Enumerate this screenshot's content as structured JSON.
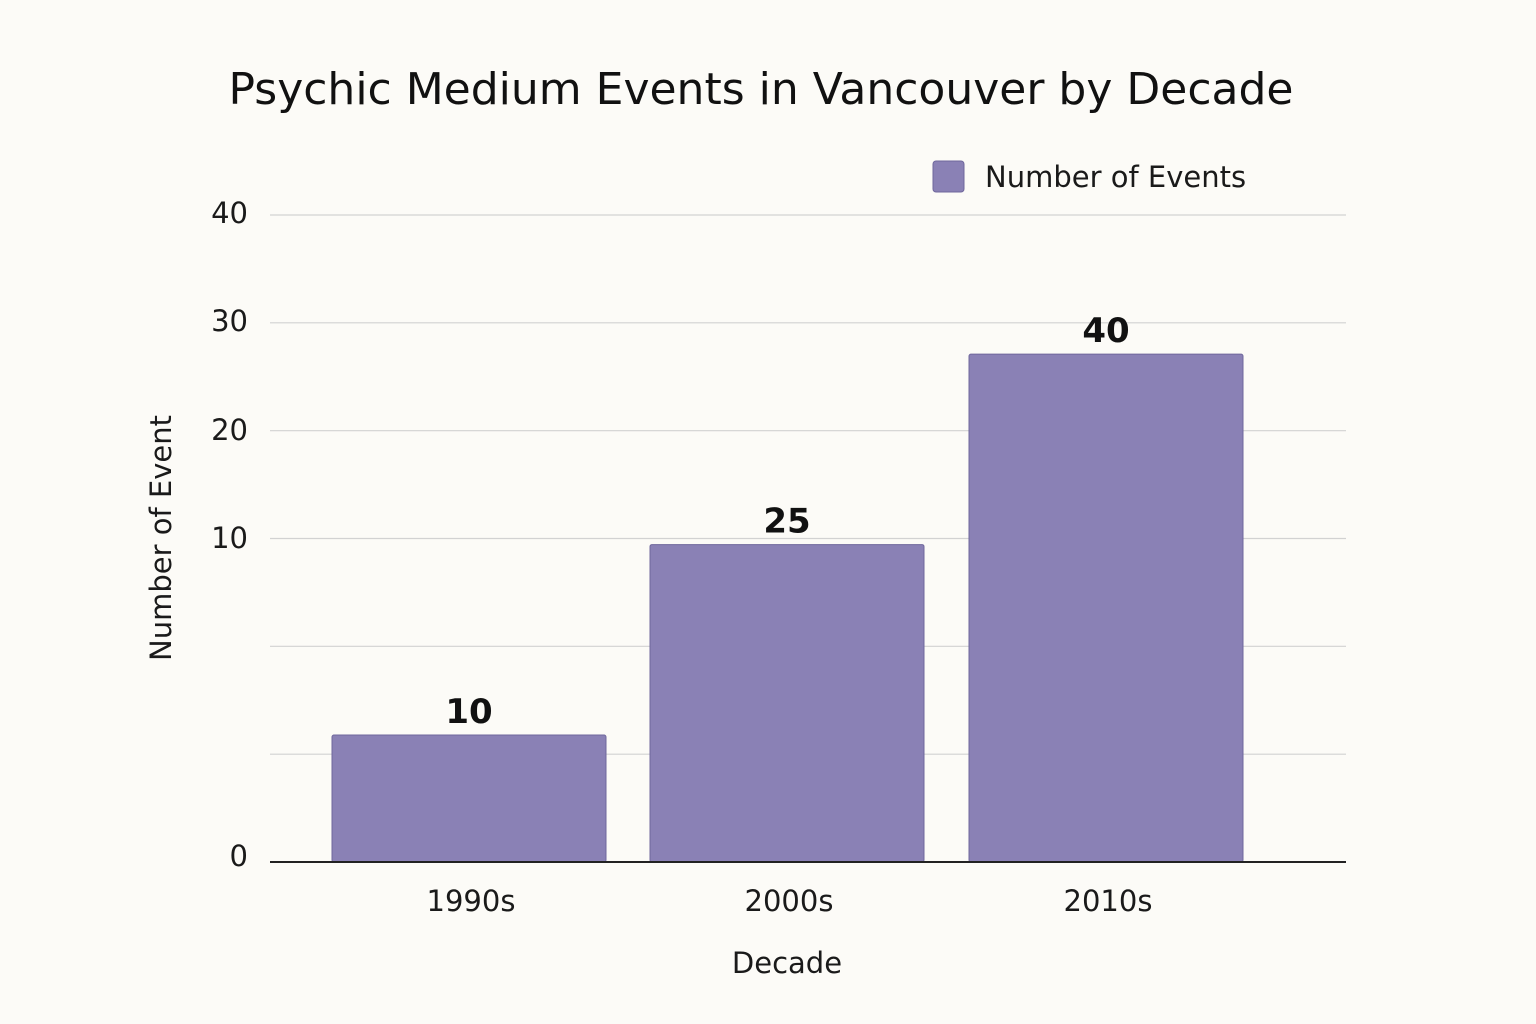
{
  "chart_data": {
    "type": "bar",
    "title": "Psychic Medium Events in Vancouver by Decade",
    "xlabel": "Decade",
    "ylabel": "Number of Event",
    "categories": [
      "1990s",
      "2000s",
      "2010s"
    ],
    "series": [
      {
        "name": "Number of Events",
        "values": [
          10,
          25,
          40
        ],
        "color": "#8a81b5"
      }
    ],
    "y_ticks": [
      {
        "value": 0,
        "label": "0"
      },
      {
        "value": 10,
        "label": "10"
      },
      {
        "value": 20,
        "label": "20"
      },
      {
        "value": 30,
        "label": "30"
      },
      {
        "value": 40,
        "label": "40"
      }
    ],
    "grid": true,
    "legend": "top-right"
  }
}
